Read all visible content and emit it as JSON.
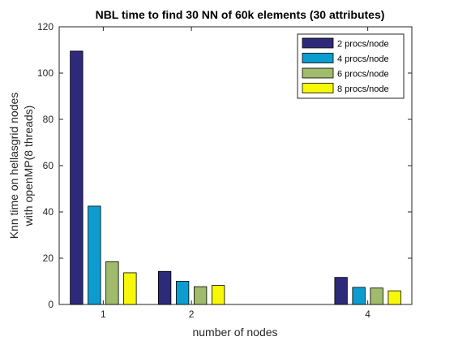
{
  "chart_data": {
    "type": "bar",
    "title": "NBL time to find 30 NN of 60k elements (30 attributes)",
    "xlabel": "number of nodes",
    "ylabel_lines": [
      "Knn time on hellasgrid nodes",
      "with openMP(8 threads)"
    ],
    "x": [
      1,
      2,
      4
    ],
    "xlim": [
      0.5,
      4.5
    ],
    "ylim": [
      0,
      120
    ],
    "yticks": [
      0,
      20,
      40,
      60,
      80,
      100,
      120
    ],
    "grid": false,
    "legend_position": "top-right",
    "series": [
      {
        "name": "2 procs/node",
        "color": "#2e2a7a",
        "values": [
          109.5,
          14.3,
          11.7
        ]
      },
      {
        "name": "4 procs/node",
        "color": "#0c9ccf",
        "values": [
          42.5,
          10.0,
          7.4
        ]
      },
      {
        "name": "6 procs/node",
        "color": "#9fbb6b",
        "values": [
          18.5,
          7.7,
          7.1
        ]
      },
      {
        "name": "8 procs/node",
        "color": "#f7f708",
        "values": [
          13.7,
          8.2,
          5.9
        ]
      }
    ]
  }
}
